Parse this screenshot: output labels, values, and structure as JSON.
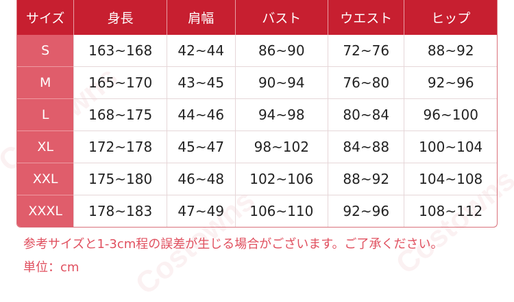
{
  "watermark": "Costowns",
  "table": {
    "headers": [
      "サイズ",
      "身長",
      "肩幅",
      "バスト",
      "ウエスト",
      "ヒップ"
    ],
    "rows": [
      [
        "S",
        "163~168",
        "42~44",
        "86~90",
        "72~76",
        "88~92"
      ],
      [
        "M",
        "165~170",
        "43~45",
        "90~94",
        "76~80",
        "92~96"
      ],
      [
        "L",
        "168~175",
        "44~46",
        "94~98",
        "80~84",
        "96~100"
      ],
      [
        "XL",
        "172~178",
        "45~47",
        "98~102",
        "84~88",
        "100~104"
      ],
      [
        "XXL",
        "175~180",
        "46~48",
        "102~106",
        "88~92",
        "104~108"
      ],
      [
        "XXXL",
        "178~183",
        "47~49",
        "106~110",
        "92~96",
        "108~112"
      ]
    ]
  },
  "notes": {
    "disclaimer": "参考サイズと1-3cm程の誤差が生じる場合がございます。ご了承ください。",
    "unit": "単位：cm"
  },
  "colors": {
    "header": "#c71f30",
    "size_column": "#e05d6b",
    "note": "#e0505f"
  }
}
